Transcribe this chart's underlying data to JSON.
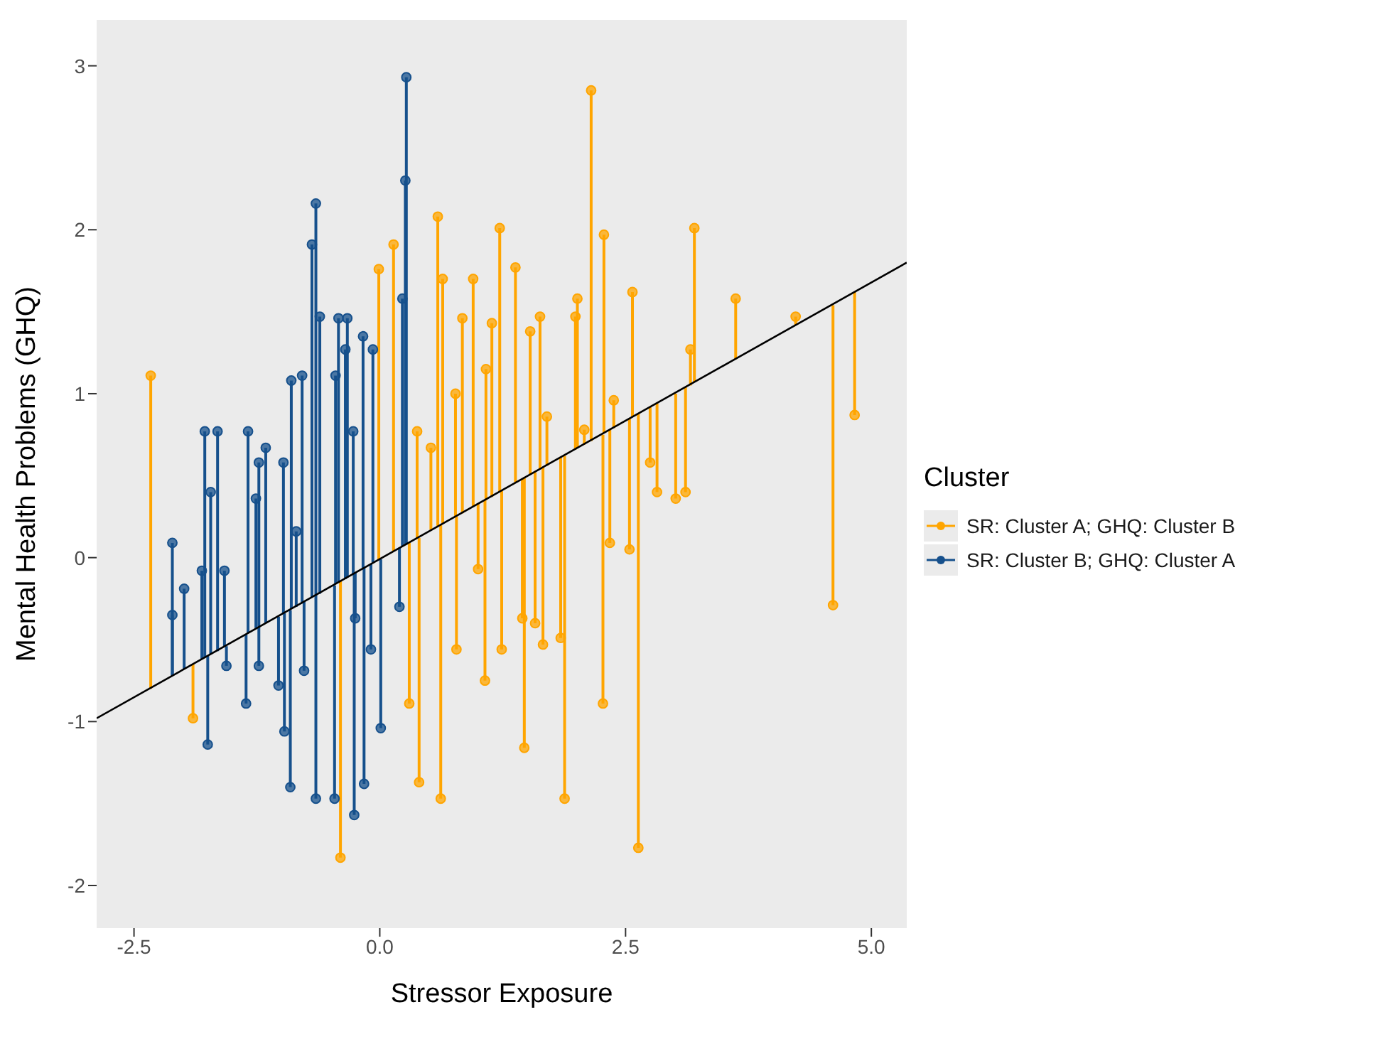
{
  "chart_data": {
    "type": "scatter",
    "xlabel": "Stressor Exposure",
    "ylabel": "Mental Health Problems (GHQ)",
    "legend_title": "Cluster",
    "legend": "right",
    "grid": false,
    "marker": "circle",
    "xlim": [
      -2.88,
      5.36
    ],
    "xticks": [
      -2.5,
      {
        "value": 0,
        "label": "0.0"
      },
      2.5,
      {
        "value": 5,
        "label": "5.0"
      }
    ],
    "ylim": [
      -2.26,
      3.28
    ],
    "yticks": [
      -2,
      -1,
      0,
      1,
      2,
      3
    ],
    "series": [
      {
        "name": "SR: Cluster A; GHQ: Cluster B",
        "color": "#ffa500",
        "x": [
          -2.33,
          -1.9,
          -0.4,
          -0.01,
          0.14,
          0.3,
          0.38,
          0.4,
          0.52,
          0.59,
          0.62,
          0.64,
          0.77,
          0.78,
          0.84,
          0.95,
          1.0,
          1.07,
          1.08,
          1.14,
          1.22,
          1.24,
          1.38,
          1.45,
          1.47,
          1.53,
          1.58,
          1.63,
          1.66,
          1.7,
          1.84,
          1.88,
          1.99,
          2.01,
          2.08,
          2.15,
          2.27,
          2.28,
          2.34,
          2.38,
          2.54,
          2.57,
          2.63,
          2.75,
          2.82,
          3.01,
          3.11,
          3.16,
          3.2,
          3.62,
          4.23,
          4.61,
          4.83
        ],
        "values": [
          1.11,
          -0.98,
          -1.83,
          1.76,
          1.91,
          -0.89,
          0.77,
          -1.37,
          0.67,
          2.08,
          -1.47,
          1.7,
          1.0,
          -0.56,
          1.46,
          1.7,
          -0.07,
          -0.75,
          1.15,
          1.43,
          2.01,
          -0.56,
          1.77,
          -0.37,
          -1.16,
          1.38,
          -0.4,
          1.47,
          -0.53,
          0.86,
          -0.49,
          -1.47,
          1.47,
          1.58,
          0.78,
          2.85,
          -0.89,
          1.97,
          0.09,
          0.96,
          0.05,
          1.62,
          -1.77,
          0.58,
          0.4,
          0.36,
          0.4,
          1.27,
          2.01,
          1.58,
          1.47,
          -0.29,
          0.87
        ],
        "errors": [
          [
            -0.8,
            1.11
          ],
          [
            -0.98,
            -0.65
          ],
          [
            -1.83,
            -0.14
          ],
          [
            -0.01,
            1.76
          ],
          [
            0.04,
            1.91
          ],
          [
            -0.89,
            0.09
          ],
          [
            0.12,
            0.77
          ],
          [
            -1.37,
            0.12
          ],
          [
            0.17,
            0.67
          ],
          [
            0.19,
            2.08
          ],
          [
            -1.47,
            0.2
          ],
          [
            0.21,
            1.7
          ],
          [
            0.25,
            1.0
          ],
          [
            -0.56,
            0.25
          ],
          [
            0.27,
            1.46
          ],
          [
            0.31,
            1.7
          ],
          [
            -0.07,
            0.33
          ],
          [
            -0.75,
            0.35
          ],
          [
            0.35,
            1.15
          ],
          [
            0.37,
            1.43
          ],
          [
            0.4,
            2.01
          ],
          [
            -0.56,
            0.41
          ],
          [
            0.46,
            1.77
          ],
          [
            -0.37,
            0.48
          ],
          [
            -1.16,
            0.49
          ],
          [
            0.51,
            1.38
          ],
          [
            -0.4,
            0.52
          ],
          [
            0.54,
            1.47
          ],
          [
            -0.53,
            0.55
          ],
          [
            0.56,
            0.86
          ],
          [
            -0.49,
            0.61
          ],
          [
            -1.47,
            0.62
          ],
          [
            0.66,
            1.47
          ],
          [
            0.67,
            1.58
          ],
          [
            0.69,
            0.78
          ],
          [
            0.71,
            2.85
          ],
          [
            -0.89,
            0.75
          ],
          [
            0.76,
            1.97
          ],
          [
            0.09,
            0.78
          ],
          [
            0.79,
            0.96
          ],
          [
            0.05,
            0.85
          ],
          [
            0.86,
            1.62
          ],
          [
            -1.77,
            0.88
          ],
          [
            0.58,
            0.92
          ],
          [
            0.4,
            0.94
          ],
          [
            0.36,
            1.0
          ],
          [
            0.4,
            1.04
          ],
          [
            1.05,
            1.27
          ],
          [
            1.07,
            2.01
          ],
          [
            1.21,
            1.58
          ],
          [
            1.42,
            1.47
          ],
          [
            -0.29,
            1.54
          ],
          [
            0.87,
            1.62
          ]
        ]
      },
      {
        "name": "SR: Cluster B; GHQ: Cluster A",
        "color": "#16508c",
        "x": [
          -2.11,
          -2.11,
          -1.99,
          -1.81,
          -1.78,
          -1.75,
          -1.72,
          -1.65,
          -1.58,
          -1.56,
          -1.36,
          -1.34,
          -1.26,
          -1.23,
          -1.23,
          -1.16,
          -1.03,
          -0.98,
          -0.97,
          -0.91,
          -0.9,
          -0.85,
          -0.79,
          -0.77,
          -0.69,
          -0.65,
          -0.65,
          -0.61,
          -0.46,
          -0.45,
          -0.42,
          -0.35,
          -0.33,
          -0.27,
          -0.26,
          -0.25,
          -0.17,
          -0.16,
          -0.09,
          -0.07,
          0.01,
          0.2,
          0.23,
          0.26,
          0.27
        ],
        "values": [
          0.09,
          -0.35,
          -0.19,
          -0.08,
          0.77,
          -1.14,
          0.4,
          0.77,
          -0.08,
          -0.66,
          -0.89,
          0.77,
          0.36,
          0.58,
          -0.66,
          0.67,
          -0.78,
          0.58,
          -1.06,
          -1.4,
          1.08,
          0.16,
          1.11,
          -0.69,
          1.91,
          2.16,
          -1.47,
          1.47,
          -1.47,
          1.11,
          1.46,
          1.27,
          1.46,
          0.77,
          -1.57,
          -0.37,
          1.35,
          -1.38,
          -0.56,
          1.27,
          -1.04,
          -0.3,
          1.58,
          2.3,
          2.93
        ],
        "errors": [
          [
            -0.72,
            0.09
          ],
          [
            -0.72,
            -0.35
          ],
          [
            -0.68,
            -0.19
          ],
          [
            -0.62,
            -0.08
          ],
          [
            -0.61,
            0.77
          ],
          [
            -1.14,
            -0.6
          ],
          [
            -0.59,
            0.4
          ],
          [
            -0.57,
            0.77
          ],
          [
            -0.54,
            -0.08
          ],
          [
            -0.66,
            -0.54
          ],
          [
            -0.89,
            -0.47
          ],
          [
            -0.46,
            0.77
          ],
          [
            -0.43,
            0.36
          ],
          [
            -0.42,
            0.58
          ],
          [
            -0.66,
            -0.42
          ],
          [
            -0.4,
            0.67
          ],
          [
            -0.78,
            -0.36
          ],
          [
            -0.34,
            0.58
          ],
          [
            -1.06,
            -0.34
          ],
          [
            -1.4,
            -0.32
          ],
          [
            -0.31,
            1.08
          ],
          [
            -0.3,
            0.16
          ],
          [
            -0.28,
            1.11
          ],
          [
            -0.69,
            -0.27
          ],
          [
            -0.24,
            1.91
          ],
          [
            -0.23,
            2.16
          ],
          [
            -1.47,
            -0.23
          ],
          [
            -0.22,
            1.47
          ],
          [
            -1.47,
            -0.17
          ],
          [
            -0.16,
            1.11
          ],
          [
            -0.15,
            1.46
          ],
          [
            -0.13,
            1.27
          ],
          [
            -0.12,
            1.46
          ],
          [
            -0.1,
            0.77
          ],
          [
            -1.57,
            -0.1
          ],
          [
            -0.37,
            -0.09
          ],
          [
            -0.07,
            1.35
          ],
          [
            -1.38,
            -0.06
          ],
          [
            -0.56,
            -0.04
          ],
          [
            -0.03,
            1.27
          ],
          [
            -1.04,
            -0.01
          ],
          [
            -0.3,
            0.06
          ],
          [
            0.07,
            1.58
          ],
          [
            0.08,
            2.3
          ],
          [
            0.08,
            2.93
          ]
        ]
      },
      {
        "type": "line",
        "marker": "none",
        "color": "#000000",
        "x": [
          -2.88,
          5.36
        ],
        "values": [
          -0.98,
          1.8
        ]
      }
    ]
  }
}
